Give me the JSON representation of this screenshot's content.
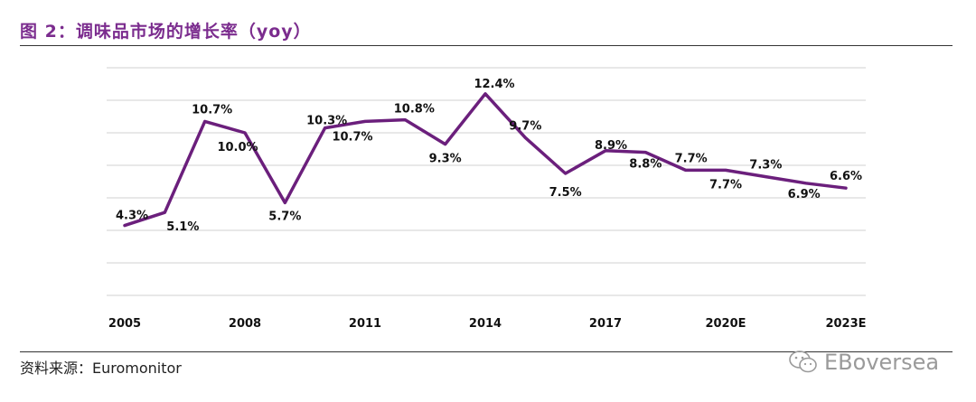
{
  "header": {
    "title": "图 2：调味品市场的增长率（yoy）"
  },
  "footer": {
    "source": "资料来源：Euromonitor",
    "watermark": "EBoversea"
  },
  "colors": {
    "line": "#6b1f7c",
    "title": "#7b2c8e",
    "grid": "#d9d9d9"
  },
  "chart_data": {
    "type": "line",
    "title": "图 2：调味品市场的增长率（yoy）",
    "xlabel": "",
    "ylabel": "",
    "x": [
      "2005",
      "2006",
      "2007",
      "2008",
      "2009",
      "2010",
      "2011",
      "2012",
      "2013",
      "2014",
      "2015",
      "2016",
      "2017",
      "2018",
      "2019",
      "2020E",
      "2021E",
      "2022E",
      "2023E"
    ],
    "tick_labels": [
      "2005",
      "2008",
      "2011",
      "2014",
      "2017",
      "2020E",
      "2023E"
    ],
    "series": [
      {
        "name": "",
        "values": [
          4.3,
          5.1,
          10.7,
          10.0,
          5.7,
          10.3,
          10.7,
          10.8,
          9.3,
          12.4,
          9.7,
          7.5,
          8.9,
          8.8,
          7.7,
          7.7,
          7.3,
          6.9,
          6.6
        ],
        "labels": [
          "4.3%",
          "5.1%",
          "10.7%",
          "10.0%",
          "5.7%",
          "10.3%",
          "10.7%",
          "10.8%",
          "9.3%",
          "12.4%",
          "9.7%",
          "7.5%",
          "8.9%",
          "8.8%",
          "7.7%",
          "7.7%",
          "7.3%",
          "6.9%",
          "6.6%"
        ]
      }
    ],
    "ylim": [
      0,
      14
    ],
    "grid": true,
    "legend": "none"
  }
}
